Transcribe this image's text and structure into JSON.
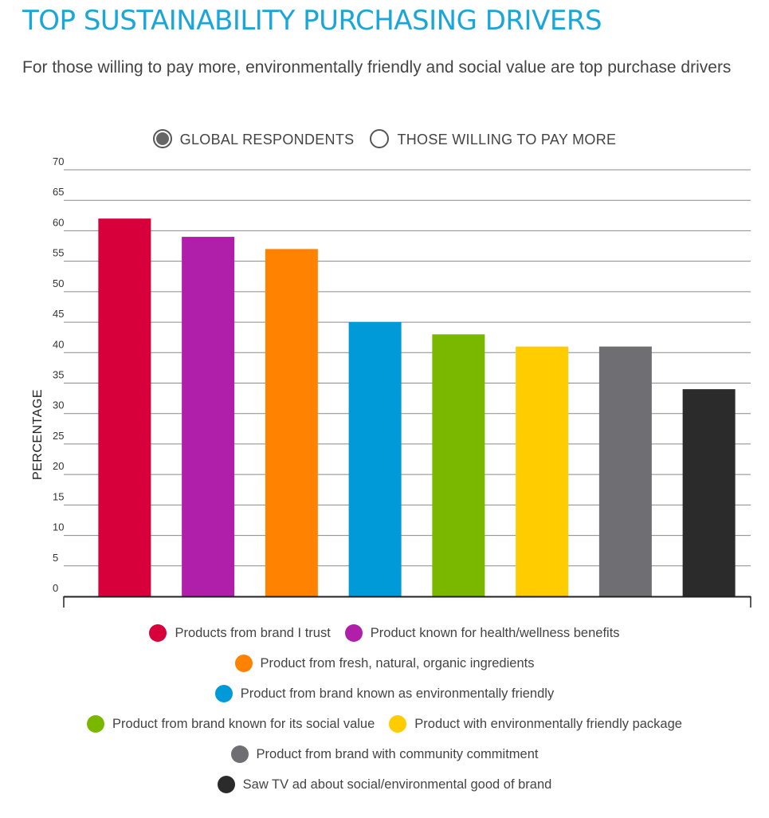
{
  "title": "TOP SUSTAINABILITY PURCHASING DRIVERS",
  "subtitle": "For those willing to pay more, environmentally friendly and social value are top purchase drivers",
  "toggle": {
    "options": [
      {
        "label": "GLOBAL RESPONDENTS",
        "selected": true
      },
      {
        "label": "THOSE WILLING TO PAY MORE",
        "selected": false
      }
    ]
  },
  "chart_data": {
    "type": "bar",
    "ylabel": "PERCENTAGE",
    "ylim": [
      0,
      70
    ],
    "yticks": [
      "0",
      "5",
      "10",
      "15",
      "20",
      "25",
      "30",
      "35",
      "40",
      "45",
      "50",
      "55",
      "60",
      "65",
      "70"
    ],
    "grid": true,
    "legend_placement": "bottom",
    "categories": [
      "Products from brand I trust",
      "Product known for health/wellness benefits",
      "Product from fresh, natural, organic ingredients",
      "Product from brand known as environmentally friendly",
      "Product from brand known for its social value",
      "Product with environmentally friendly package",
      "Product from brand with community commitment",
      "Saw TV ad about social/environmental good of brand"
    ],
    "values": [
      62,
      59,
      57,
      45,
      43,
      41,
      41,
      34
    ],
    "colors": [
      "#d7003a",
      "#b01faa",
      "#ff8200",
      "#009ad9",
      "#7ab800",
      "#ffcc00",
      "#6e6e73",
      "#2b2b2b"
    ]
  }
}
